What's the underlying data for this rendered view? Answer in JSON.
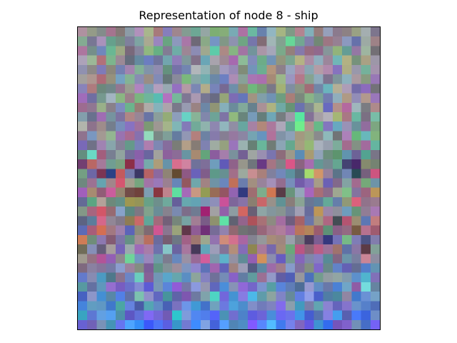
{
  "figure": {
    "title": "Representation of node 8 - ship"
  },
  "image": {
    "content": "32x32 pixelated RGB representation",
    "grid_size": 32
  }
}
